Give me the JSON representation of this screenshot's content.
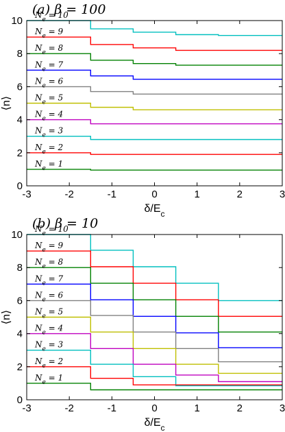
{
  "chart_data": [
    {
      "type": "line",
      "panel_id": "a",
      "title": "(a) β = 100",
      "xlabel": "δ/E_c",
      "ylabel": "⟨n⟩",
      "xlim": [
        -3,
        3
      ],
      "ylim": [
        0,
        10
      ],
      "xticks": [
        -3,
        -2,
        -1,
        0,
        1,
        2,
        3
      ],
      "yticks": [
        0,
        2,
        4,
        6,
        8,
        10
      ],
      "grid": false,
      "curve_labels": [
        "N_e = 10",
        "N_e = 9",
        "N_e = 8",
        "N_e = 7",
        "N_e = 6",
        "N_e = 5",
        "N_e = 4",
        "N_e = 3",
        "N_e = 2",
        "N_e = 1"
      ],
      "series": [
        {
          "name": "N_e = 10",
          "color": "#00bfbf",
          "x": [
            -3,
            -1.5,
            -1.5,
            -0.5,
            -0.5,
            0.5,
            0.5,
            1.5,
            1.5,
            3
          ],
          "y": [
            10,
            10,
            9.5,
            9.5,
            9.3,
            9.3,
            9.15,
            9.15,
            9.1,
            9.1
          ]
        },
        {
          "name": "N_e = 9",
          "color": "#ff0000",
          "x": [
            -3,
            -1.5,
            -1.5,
            -0.5,
            -0.5,
            0.5,
            0.5,
            3
          ],
          "y": [
            9,
            9,
            8.55,
            8.55,
            8.35,
            8.35,
            8.2,
            8.2
          ]
        },
        {
          "name": "N_e = 8",
          "color": "#008000",
          "x": [
            -3,
            -1.5,
            -1.5,
            -0.5,
            -0.5,
            0.5,
            0.5,
            3
          ],
          "y": [
            8,
            8,
            7.6,
            7.6,
            7.4,
            7.4,
            7.3,
            7.3
          ]
        },
        {
          "name": "N_e = 7",
          "color": "#0000ff",
          "x": [
            -3,
            -1.5,
            -1.5,
            -0.5,
            -0.5,
            3
          ],
          "y": [
            7,
            7,
            6.65,
            6.65,
            6.45,
            6.45
          ]
        },
        {
          "name": "N_e = 6",
          "color": "#808080",
          "x": [
            -3,
            -1.5,
            -1.5,
            -0.5,
            -0.5,
            3
          ],
          "y": [
            6,
            6,
            5.7,
            5.7,
            5.55,
            5.55
          ]
        },
        {
          "name": "N_e = 5",
          "color": "#bfbf00",
          "x": [
            -3,
            -1.5,
            -1.5,
            -0.5,
            -0.5,
            3
          ],
          "y": [
            5,
            5,
            4.75,
            4.75,
            4.6,
            4.6
          ]
        },
        {
          "name": "N_e = 4",
          "color": "#bf00bf",
          "x": [
            -3,
            -1.5,
            -1.5,
            3
          ],
          "y": [
            4,
            4,
            3.75,
            3.75
          ]
        },
        {
          "name": "N_e = 3",
          "color": "#00bfbf",
          "x": [
            -3,
            -1.5,
            -1.5,
            3
          ],
          "y": [
            3,
            3,
            2.8,
            2.8
          ]
        },
        {
          "name": "N_e = 2",
          "color": "#ff0000",
          "x": [
            -3,
            -1.5,
            -1.5,
            3
          ],
          "y": [
            2,
            2,
            1.9,
            1.9
          ]
        },
        {
          "name": "N_e = 1",
          "color": "#008000",
          "x": [
            -3,
            -1.5,
            -1.5,
            3
          ],
          "y": [
            1,
            1,
            0.95,
            0.95
          ]
        }
      ]
    },
    {
      "type": "line",
      "panel_id": "b",
      "title": "(b) β = 10",
      "xlabel": "δ/E_c",
      "ylabel": "⟨n⟩",
      "xlim": [
        -3,
        3
      ],
      "ylim": [
        0,
        10
      ],
      "xticks": [
        -3,
        -2,
        -1,
        0,
        1,
        2,
        3
      ],
      "yticks": [
        0,
        2,
        4,
        6,
        8,
        10
      ],
      "grid": false,
      "curve_labels": [
        "N_e = 10",
        "N_e = 9",
        "N_e = 8",
        "N_e = 7",
        "N_e = 6",
        "N_e = 5",
        "N_e = 4",
        "N_e = 3",
        "N_e = 2",
        "N_e = 1"
      ],
      "series": [
        {
          "name": "N_e = 10",
          "color": "#00bfbf",
          "x": [
            -3,
            -1.5,
            -1.5,
            -0.5,
            -0.5,
            0.5,
            0.5,
            1.5,
            1.5,
            3
          ],
          "y": [
            10,
            10,
            9.05,
            9.05,
            8.05,
            8.05,
            7.05,
            7.05,
            6.0,
            6.0
          ]
        },
        {
          "name": "N_e = 9",
          "color": "#ff0000",
          "x": [
            -3,
            -1.5,
            -1.5,
            -0.5,
            -0.5,
            0.5,
            0.5,
            1.5,
            1.5,
            3
          ],
          "y": [
            9,
            9,
            8.05,
            8.05,
            7.05,
            7.05,
            6.05,
            6.05,
            5.05,
            5.05
          ]
        },
        {
          "name": "N_e = 8",
          "color": "#008000",
          "x": [
            -3,
            -1.5,
            -1.5,
            -0.5,
            -0.5,
            0.5,
            0.5,
            1.5,
            1.5,
            3
          ],
          "y": [
            8,
            8,
            7.05,
            7.05,
            6.05,
            6.05,
            5.05,
            5.05,
            4.1,
            4.1
          ]
        },
        {
          "name": "N_e = 7",
          "color": "#0000ff",
          "x": [
            -3,
            -1.5,
            -1.5,
            -0.5,
            -0.5,
            0.5,
            0.5,
            1.5,
            1.5,
            3
          ],
          "y": [
            7,
            7,
            6.05,
            6.05,
            5.05,
            5.05,
            4.05,
            4.05,
            3.15,
            3.15
          ]
        },
        {
          "name": "N_e = 6",
          "color": "#808080",
          "x": [
            -3,
            -1.5,
            -1.5,
            -0.5,
            -0.5,
            0.5,
            0.5,
            1.5,
            1.5,
            3
          ],
          "y": [
            6,
            6,
            5.1,
            5.1,
            4.1,
            4.1,
            3.1,
            3.1,
            2.3,
            2.3
          ]
        },
        {
          "name": "N_e = 5",
          "color": "#bfbf00",
          "x": [
            -3,
            -1.5,
            -1.5,
            -0.5,
            -0.5,
            0.5,
            0.5,
            1.5,
            1.5,
            3
          ],
          "y": [
            5,
            5,
            4.1,
            4.1,
            3.1,
            3.1,
            2.15,
            2.15,
            1.6,
            1.6
          ]
        },
        {
          "name": "N_e = 4",
          "color": "#bf00bf",
          "x": [
            -3,
            -1.5,
            -1.5,
            -0.5,
            -0.5,
            0.5,
            0.5,
            1.5,
            1.5,
            3
          ],
          "y": [
            4,
            4,
            3.1,
            3.1,
            2.15,
            2.15,
            1.5,
            1.5,
            1.1,
            1.1
          ]
        },
        {
          "name": "N_e = 3",
          "color": "#00bfbf",
          "x": [
            -3,
            -1.5,
            -1.5,
            -0.5,
            -0.5,
            0.5,
            0.5,
            3
          ],
          "y": [
            3,
            3,
            2.15,
            2.15,
            1.4,
            1.4,
            0.85,
            0.85
          ]
        },
        {
          "name": "N_e = 2",
          "color": "#ff0000",
          "x": [
            -3,
            -1.5,
            -1.5,
            -0.5,
            -0.5,
            3
          ],
          "y": [
            2,
            2,
            1.3,
            1.3,
            0.9,
            0.9
          ]
        },
        {
          "name": "N_e = 1",
          "color": "#008000",
          "x": [
            -3,
            -1.5,
            -1.5,
            3
          ],
          "y": [
            1,
            1,
            0.6,
            0.6
          ]
        }
      ]
    }
  ]
}
